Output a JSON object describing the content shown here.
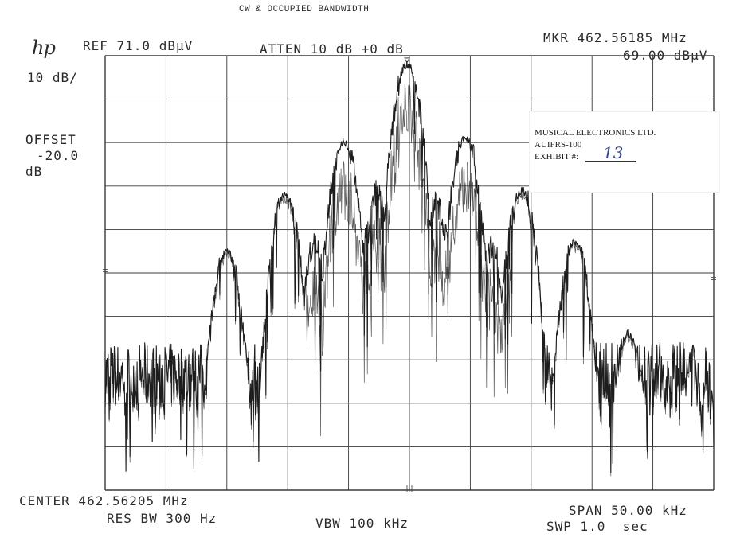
{
  "title": "CW & OCCUPIED BANDWIDTH",
  "header": {
    "logo": "hp",
    "ref": "REF 71.0 dBµV",
    "atten": "ATTEN 10 dB +0 dB",
    "marker_freq": "MKR 462.56185 MHz",
    "marker_level": "69.00 dBµV",
    "scale": "10 dB/",
    "offset_label": "OFFSET",
    "offset_value": "-20.0",
    "offset_unit": "dB"
  },
  "footer": {
    "center": "CENTER 462.56205 MHz",
    "res_bw": "RES BW 300 Hz",
    "vbw": "VBW 100 kHz",
    "span": "SPAN 50.00 kHz",
    "sweep": "SWP 1.0  sec"
  },
  "stamp": {
    "company": "MUSICAL ELECTRONICS LTD.",
    "model": "AUIFRS-100",
    "exhibit_label": "EXHIBIT #:",
    "exhibit_number": "13"
  },
  "colors": {
    "trace": "#1e1e1e",
    "grid": "#3a3a3a",
    "stamp_ink": "#33448c"
  },
  "chart_data": {
    "type": "line",
    "title": "CW & OCCUPIED BANDWIDTH",
    "x_unit": "MHz",
    "y_unit": "dBµV",
    "x_center": 462.56205,
    "x_span_khz": 50.0,
    "xlim_khz_offset": [
      -25,
      25
    ],
    "ylim": [
      -29,
      71
    ],
    "y_per_div": 10,
    "x_divisions": 10,
    "y_divisions": 10,
    "grid": true,
    "noise_floor_range": [
      -10,
      5
    ],
    "peaks": [
      {
        "offset_khz": -15.0,
        "level": 26
      },
      {
        "offset_khz": -10.2,
        "level": 39
      },
      {
        "offset_khz": -5.4,
        "level": 51
      },
      {
        "offset_khz": -0.2,
        "level": 69
      },
      {
        "offset_khz": 4.6,
        "level": 52
      },
      {
        "offset_khz": 9.2,
        "level": 40
      },
      {
        "offset_khz": 13.6,
        "level": 28
      },
      {
        "offset_khz": 18.0,
        "level": 7
      }
    ],
    "marker": {
      "freq_mhz": 462.56185,
      "level": 69.0
    }
  }
}
